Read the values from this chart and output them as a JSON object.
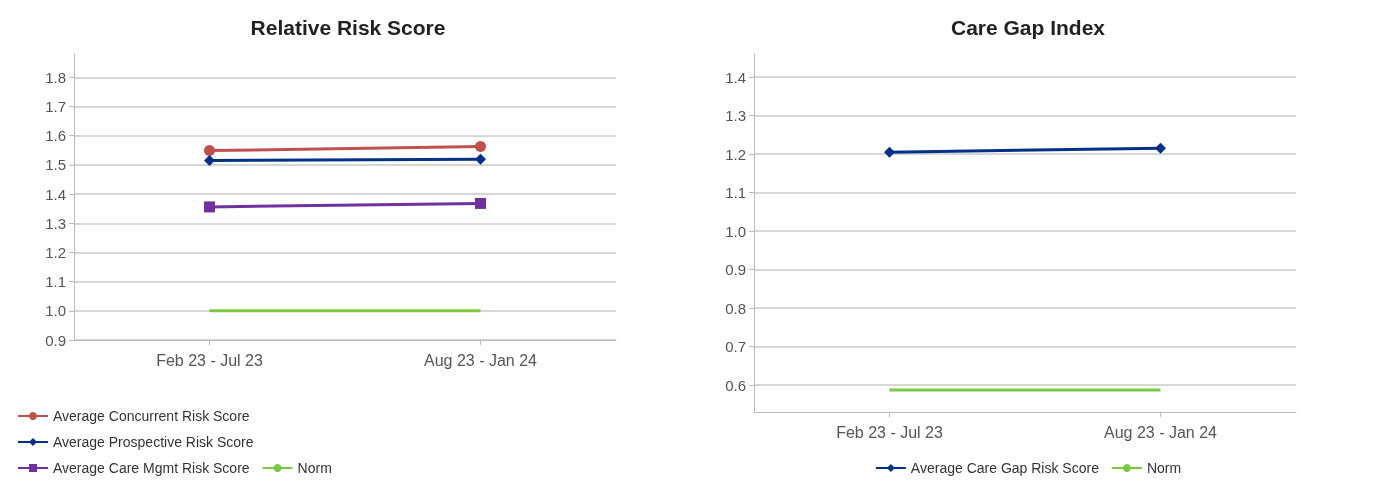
{
  "chart_data": [
    {
      "type": "line",
      "title": "Relative Risk Score",
      "categories": [
        "Feb 23 - Jul 23",
        "Aug 23 - Jan 24"
      ],
      "ylim": [
        0.9,
        1.88
      ],
      "yticks": [
        0.9,
        {
          "value": 1,
          "label": "1.0"
        },
        1.1,
        1.2,
        1.3,
        1.4,
        1.5,
        1.6,
        1.7,
        1.8
      ],
      "grid": "y",
      "legend": "bottom left",
      "series": [
        {
          "name": "Average Concurrent Risk Score",
          "color": "#c0504d",
          "marker": "circle",
          "values": [
            1.549,
            1.563
          ]
        },
        {
          "name": "Average Prospective Risk Score",
          "color": "#003087",
          "marker": "diamond",
          "values": [
            1.515,
            1.519
          ]
        },
        {
          "name": "Average Care Mgmt Risk Score",
          "color": "#7030a0",
          "marker": "square",
          "values": [
            1.356,
            1.368
          ]
        },
        {
          "name": "Norm",
          "color": "#7ac943",
          "marker": "none",
          "values": [
            1.0,
            1.0
          ]
        }
      ]
    },
    {
      "type": "line",
      "title": "Care Gap Index",
      "categories": [
        "Feb 23 - Jul 23",
        "Aug 23 - Jan 24"
      ],
      "ylim": [
        0.53,
        1.46
      ],
      "yticks": [
        0.6,
        0.7,
        0.8,
        0.9,
        {
          "value": 1,
          "label": "1.0"
        },
        1.1,
        1.2,
        1.3,
        1.4
      ],
      "grid": "y",
      "legend": "bottom",
      "series": [
        {
          "name": "Average Care Gap Risk Score",
          "color": "#003087",
          "marker": "diamond",
          "values": [
            1.205,
            1.215
          ]
        },
        {
          "name": "Norm",
          "color": "#7ac943",
          "marker": "none",
          "values": [
            0.587,
            0.587
          ]
        }
      ]
    }
  ]
}
